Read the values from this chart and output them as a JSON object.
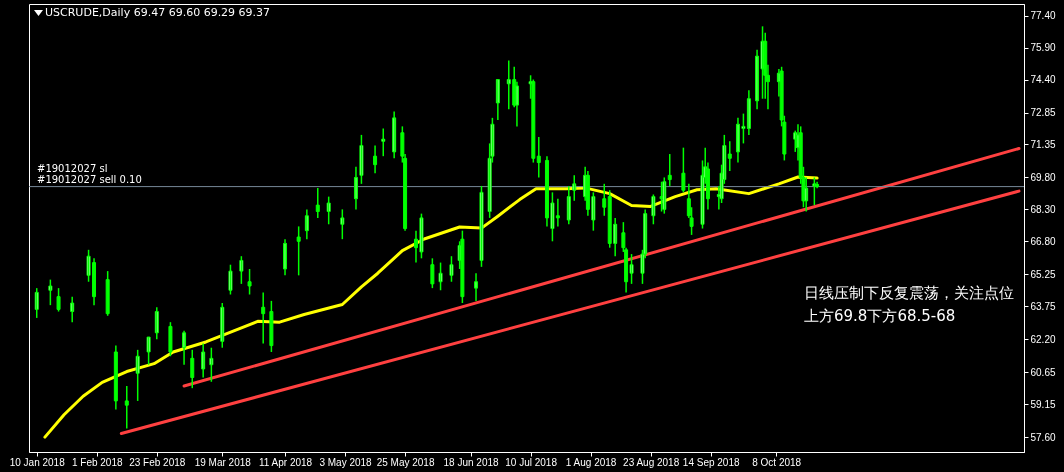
{
  "chart_data": {
    "type": "candlestick",
    "title": "USCRUDE,Daily  69.47 69.60 69.29 69.37",
    "color": "#00ff00",
    "x": [
      "2018-01-10",
      "2018-01-15",
      "2018-01-18",
      "2018-01-23",
      "2018-01-29",
      "2018-01-31",
      "2018-02-05",
      "2018-02-08",
      "2018-02-12",
      "2018-02-16",
      "2018-02-20",
      "2018-02-23",
      "2018-02-28",
      "2018-03-05",
      "2018-03-08",
      "2018-03-12",
      "2018-03-15",
      "2018-03-19",
      "2018-03-22",
      "2018-03-26",
      "2018-03-29",
      "2018-04-03",
      "2018-04-06",
      "2018-04-11",
      "2018-04-16",
      "2018-04-19",
      "2018-04-23",
      "2018-04-27",
      "2018-05-02",
      "2018-05-07",
      "2018-05-09",
      "2018-05-14",
      "2018-05-17",
      "2018-05-21",
      "2018-05-24",
      "2018-05-25",
      "2018-05-29",
      "2018-05-31",
      "2018-06-04",
      "2018-06-07",
      "2018-06-11",
      "2018-06-14",
      "2018-06-15",
      "2018-06-20",
      "2018-06-22",
      "2018-06-25",
      "2018-06-26",
      "2018-06-28",
      "2018-07-02",
      "2018-07-04",
      "2018-07-05",
      "2018-07-10",
      "2018-07-11",
      "2018-07-13",
      "2018-07-16",
      "2018-07-18",
      "2018-07-20",
      "2018-07-24",
      "2018-07-26",
      "2018-07-30",
      "2018-07-31",
      "2018-08-02",
      "2018-08-06",
      "2018-08-08",
      "2018-08-10",
      "2018-08-13",
      "2018-08-14",
      "2018-08-16",
      "2018-08-20",
      "2018-08-21",
      "2018-08-24",
      "2018-08-27",
      "2018-08-28",
      "2018-08-30",
      "2018-09-04",
      "2018-09-06",
      "2018-09-07",
      "2018-09-11",
      "2018-09-12",
      "2018-09-13",
      "2018-09-17",
      "2018-09-18",
      "2018-09-19",
      "2018-09-21",
      "2018-09-24",
      "2018-09-26",
      "2018-09-28",
      "2018-10-01",
      "2018-10-03",
      "2018-10-04",
      "2018-10-05",
      "2018-10-09",
      "2018-10-10",
      "2018-10-11",
      "2018-10-15",
      "2018-10-16",
      "2018-10-17",
      "2018-10-18",
      "2018-10-19",
      "2018-10-22",
      "2018-10-23"
    ],
    "ohlc": [
      [
        63.6,
        64.6,
        63.2,
        64.4
      ],
      [
        64.5,
        65.0,
        63.8,
        64.7
      ],
      [
        64.2,
        64.6,
        63.5,
        63.6
      ],
      [
        63.5,
        64.2,
        63.0,
        63.9
      ],
      [
        65.2,
        66.4,
        64.9,
        66.1
      ],
      [
        65.8,
        66.0,
        63.8,
        64.2
      ],
      [
        65.0,
        65.4,
        63.3,
        63.4
      ],
      [
        61.6,
        61.9,
        58.9,
        59.3
      ],
      [
        59.3,
        60.0,
        58.0,
        59.1
      ],
      [
        60.6,
        61.7,
        59.3,
        61.4
      ],
      [
        61.6,
        62.3,
        61.0,
        62.3
      ],
      [
        62.5,
        63.7,
        62.2,
        63.5
      ],
      [
        62.8,
        63.0,
        61.4,
        61.6
      ],
      [
        61.8,
        62.6,
        61.0,
        62.5
      ],
      [
        61.3,
        61.7,
        59.9,
        60.4
      ],
      [
        60.8,
        62.0,
        60.4,
        61.6
      ],
      [
        61.0,
        61.8,
        60.2,
        61.3
      ],
      [
        62.1,
        63.9,
        61.8,
        63.7
      ],
      [
        64.5,
        65.7,
        64.3,
        65.4
      ],
      [
        65.4,
        66.1,
        64.8,
        65.9
      ],
      [
        64.9,
        65.5,
        64.3,
        64.7
      ],
      [
        63.7,
        64.4,
        62.0,
        63.4
      ],
      [
        63.5,
        64.0,
        61.6,
        61.9
      ],
      [
        65.5,
        66.9,
        65.2,
        66.7
      ],
      [
        67.0,
        67.5,
        65.2,
        66.8
      ],
      [
        67.3,
        68.3,
        66.9,
        68.0
      ],
      [
        68.5,
        69.3,
        67.9,
        68.2
      ],
      [
        68.2,
        68.9,
        67.6,
        68.6
      ],
      [
        67.6,
        68.3,
        66.9,
        67.9
      ],
      [
        68.8,
        70.3,
        68.3,
        69.8
      ],
      [
        69.9,
        71.8,
        69.5,
        71.3
      ],
      [
        70.8,
        71.3,
        70.0,
        70.4
      ],
      [
        71.5,
        72.1,
        70.8,
        71.6
      ],
      [
        71.0,
        72.9,
        70.7,
        72.6
      ],
      [
        71.9,
        72.2,
        70.5,
        70.8
      ],
      [
        70.7,
        70.9,
        67.3,
        67.4
      ],
      [
        66.9,
        67.3,
        65.8,
        66.5
      ],
      [
        66.3,
        68.1,
        66.0,
        67.9
      ],
      [
        65.7,
        66.0,
        64.6,
        64.8
      ],
      [
        64.9,
        65.8,
        64.5,
        65.3
      ],
      [
        65.2,
        66.1,
        64.9,
        65.7
      ],
      [
        65.9,
        66.8,
        65.5,
        66.6
      ],
      [
        66.9,
        67.3,
        63.9,
        64.2
      ],
      [
        64.6,
        65.3,
        64.0,
        64.9
      ],
      [
        65.9,
        69.4,
        65.6,
        69.1
      ],
      [
        68.2,
        71.4,
        67.9,
        70.7
      ],
      [
        70.8,
        72.6,
        70.5,
        72.3
      ],
      [
        73.3,
        74.4,
        72.5,
        74.4
      ],
      [
        74.2,
        75.3,
        73.0,
        74.4
      ],
      [
        74.4,
        75.0,
        73.1,
        73.2
      ],
      [
        73.2,
        74.3,
        72.2,
        74.1
      ],
      [
        74.2,
        74.6,
        73.5,
        74.3
      ],
      [
        74.3,
        74.4,
        70.5,
        70.7
      ],
      [
        70.8,
        71.7,
        69.8,
        70.5
      ],
      [
        70.6,
        70.8,
        67.5,
        67.9
      ],
      [
        67.4,
        69.1,
        66.8,
        68.6
      ],
      [
        68.0,
        68.8,
        67.5,
        67.9
      ],
      [
        67.8,
        69.4,
        67.6,
        68.9
      ],
      [
        69.2,
        69.9,
        68.7,
        69.5
      ],
      [
        68.9,
        70.3,
        68.7,
        69.9
      ],
      [
        69.9,
        70.1,
        68.0,
        68.3
      ],
      [
        67.8,
        69.1,
        67.3,
        68.9
      ],
      [
        68.8,
        69.5,
        68.0,
        68.4
      ],
      [
        68.9,
        69.2,
        66.5,
        66.7
      ],
      [
        66.7,
        67.9,
        66.1,
        67.6
      ],
      [
        67.2,
        67.7,
        66.3,
        66.5
      ],
      [
        66.4,
        66.5,
        64.4,
        64.9
      ],
      [
        65.3,
        66.2,
        64.8,
        65.7
      ],
      [
        65.3,
        66.4,
        64.8,
        66.2
      ],
      [
        66.2,
        68.3,
        66.0,
        68.1
      ],
      [
        68.0,
        69.0,
        67.6,
        68.9
      ],
      [
        68.9,
        69.6,
        68.2,
        68.8
      ],
      [
        68.3,
        69.8,
        68.1,
        69.6
      ],
      [
        69.9,
        70.9,
        69.4,
        69.7
      ],
      [
        70.0,
        71.2,
        69.1,
        69.2
      ],
      [
        68.8,
        69.5,
        67.9,
        68.0
      ],
      [
        67.9,
        68.4,
        67.1,
        67.5
      ],
      [
        67.6,
        70.6,
        67.4,
        69.9
      ],
      [
        69.8,
        71.2,
        69.5,
        70.3
      ],
      [
        70.2,
        70.5,
        68.3,
        68.8
      ],
      [
        68.9,
        69.4,
        68.3,
        69.0
      ],
      [
        68.8,
        70.4,
        68.6,
        70.0
      ],
      [
        69.7,
        71.8,
        69.5,
        71.3
      ],
      [
        70.9,
        71.5,
        70.1,
        70.7
      ],
      [
        71.0,
        72.6,
        70.5,
        72.3
      ],
      [
        72.1,
        72.8,
        71.4,
        72.2
      ],
      [
        72.1,
        73.9,
        71.8,
        73.5
      ],
      [
        73.4,
        75.8,
        73.0,
        75.5
      ],
      [
        74.9,
        76.9,
        73.5,
        76.2
      ],
      [
        76.2,
        76.6,
        73.5,
        74.6
      ],
      [
        74.6,
        75.1,
        73.0,
        74.3
      ],
      [
        74.3,
        74.9,
        73.6,
        74.7
      ],
      [
        74.8,
        75.0,
        72.2,
        72.5
      ],
      [
        72.4,
        72.7,
        70.6,
        70.9
      ],
      [
        71.6,
        72.0,
        71.0,
        71.9
      ],
      [
        71.2,
        72.3,
        70.6,
        71.8
      ],
      [
        71.9,
        72.2,
        69.5,
        69.8
      ],
      [
        69.8,
        70.3,
        68.4,
        68.7
      ],
      [
        68.7,
        69.8,
        68.2,
        69.3
      ],
      [
        69.4,
        69.8,
        68.5,
        69.5
      ],
      [
        69.47,
        69.6,
        69.29,
        69.37
      ]
    ],
    "series": [
      {
        "type": "line",
        "color": "#ffff00",
        "x": [
          "2018-01-13",
          "2018-01-20",
          "2018-01-27",
          "2018-02-03",
          "2018-02-12",
          "2018-02-22",
          "2018-03-01",
          "2018-03-13",
          "2018-03-23",
          "2018-04-01",
          "2018-04-09",
          "2018-04-18",
          "2018-05-02",
          "2018-05-09",
          "2018-05-15",
          "2018-05-24",
          "2018-06-01",
          "2018-06-14",
          "2018-06-22",
          "2018-06-28",
          "2018-07-06",
          "2018-07-12",
          "2018-07-23",
          "2018-07-30",
          "2018-08-08",
          "2018-08-16",
          "2018-08-23",
          "2018-09-01",
          "2018-09-09",
          "2018-09-16",
          "2018-09-28",
          "2018-10-09",
          "2018-10-16",
          "2018-10-23"
        ],
        "values": [
          57.6,
          58.65,
          59.52,
          60.17,
          60.68,
          61.05,
          61.6,
          62.07,
          62.58,
          63.04,
          63.0,
          63.36,
          63.83,
          64.66,
          65.3,
          66.36,
          66.91,
          67.47,
          67.42,
          67.98,
          68.76,
          69.27,
          69.27,
          69.31,
          69.04,
          68.48,
          68.44,
          68.9,
          69.22,
          69.27,
          69.04,
          69.5,
          69.82,
          69.77
        ]
      },
      {
        "type": "line",
        "color": "#ff4040",
        "x": [
          "2018-03-05",
          "2019-01-05"
        ],
        "values": [
          60.0,
          71.16
        ]
      },
      {
        "type": "line",
        "color": "#ff4040",
        "x": [
          "2018-02-10",
          "2019-01-05"
        ],
        "values": [
          57.77,
          69.16
        ]
      }
    ],
    "xlim": [
      "2018-01-09",
      "2019-01-05"
    ],
    "xticks": [
      {
        "value": "2018-01-10",
        "label": "10 Jan 2018"
      },
      {
        "value": "2018-02-01",
        "label": "1 Feb 2018"
      },
      {
        "value": "2018-02-23",
        "label": "23 Feb 2018"
      },
      {
        "value": "2018-03-19",
        "label": "19 Mar 2018"
      },
      {
        "value": "2018-04-11",
        "label": "11 Apr 2018"
      },
      {
        "value": "2018-05-03",
        "label": "3 May 2018"
      },
      {
        "value": "2018-05-25",
        "label": "25 May 2018"
      },
      {
        "value": "2018-06-18",
        "label": "18 Jun 2018"
      },
      {
        "value": "2018-07-10",
        "label": "10 Jul 2018"
      },
      {
        "value": "2018-08-01",
        "label": "1 Aug 2018"
      },
      {
        "value": "2018-08-23",
        "label": "23 Aug 2018"
      },
      {
        "value": "2018-09-14",
        "label": "14 Sep 2018"
      },
      {
        "value": "2018-10-08",
        "label": "8 Oct 2018"
      }
    ],
    "ylim": [
      56.9,
      77.95
    ],
    "yticks": [
      {
        "value": 57.6,
        "label": "57.60"
      },
      {
        "value": 59.15,
        "label": "59.15"
      },
      {
        "value": 60.65,
        "label": "60.65"
      },
      {
        "value": 62.2,
        "label": "62.20"
      },
      {
        "value": 63.75,
        "label": "63.75"
      },
      {
        "value": 65.25,
        "label": "65.25"
      },
      {
        "value": 66.8,
        "label": "66.80"
      },
      {
        "value": 68.3,
        "label": "68.30"
      },
      {
        "value": 69.8,
        "label": "69.80"
      },
      {
        "value": 71.35,
        "label": "71.35"
      },
      {
        "value": 72.85,
        "label": "72.85"
      },
      {
        "value": 74.4,
        "label": "74.40"
      },
      {
        "value": 75.9,
        "label": "75.90"
      },
      {
        "value": 77.4,
        "label": "77.40"
      }
    ],
    "ref_lines": [
      {
        "axis": "y",
        "value": 69.37,
        "color": "#778899"
      }
    ],
    "annotations": [
      "#19012027 sl",
      "#19012027 sell 0.10",
      "日线压制下反复震荡，关注点位上方69.8下方68.5-68"
    ]
  }
}
